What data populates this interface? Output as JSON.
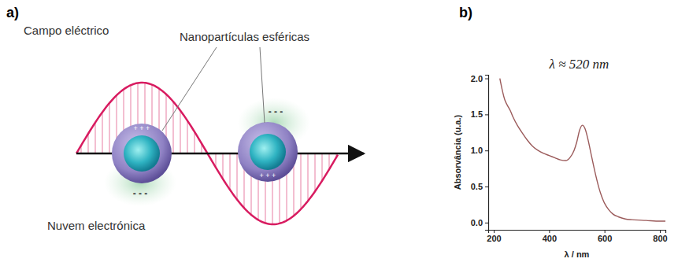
{
  "diagram": {
    "panel": "a)",
    "field_label": "Campo eléctrico",
    "particles_label": "Nanopartículas esféricas",
    "cloud_label": "Nuvem electrónica",
    "negative_charge": "- - -",
    "positive_charge": "+ + +"
  },
  "chart_data": {
    "panel": "b)",
    "type": "line",
    "x_label": "λ / nm",
    "y_label": "Absorvância (u.a.)",
    "annotation": "λ ≈ 520 nm",
    "x": [
      222,
      230,
      240,
      250,
      260,
      270,
      285,
      300,
      320,
      340,
      360,
      380,
      400,
      420,
      440,
      460,
      475,
      490,
      500,
      510,
      520,
      530,
      540,
      550,
      560,
      570,
      580,
      590,
      600,
      615,
      630,
      650,
      675,
      700,
      750,
      800,
      820
    ],
    "values": [
      2.0,
      1.85,
      1.7,
      1.62,
      1.55,
      1.46,
      1.35,
      1.26,
      1.15,
      1.06,
      1.0,
      0.96,
      0.93,
      0.9,
      0.87,
      0.86,
      0.9,
      1.0,
      1.12,
      1.28,
      1.35,
      1.3,
      1.16,
      0.98,
      0.8,
      0.63,
      0.48,
      0.36,
      0.27,
      0.18,
      0.12,
      0.08,
      0.05,
      0.04,
      0.03,
      0.02,
      0.02
    ],
    "color": "#9b5b5b",
    "xlim": [
      180,
      820
    ],
    "xticks": [
      200,
      400,
      600,
      800
    ],
    "ylim": [
      -0.1,
      2.05
    ],
    "yticks": [
      {
        "value": 0,
        "label": "0.0"
      },
      0.5,
      {
        "value": 1,
        "label": "1.0"
      },
      1.5,
      {
        "value": 2,
        "label": "2.0"
      }
    ],
    "grid": false
  }
}
